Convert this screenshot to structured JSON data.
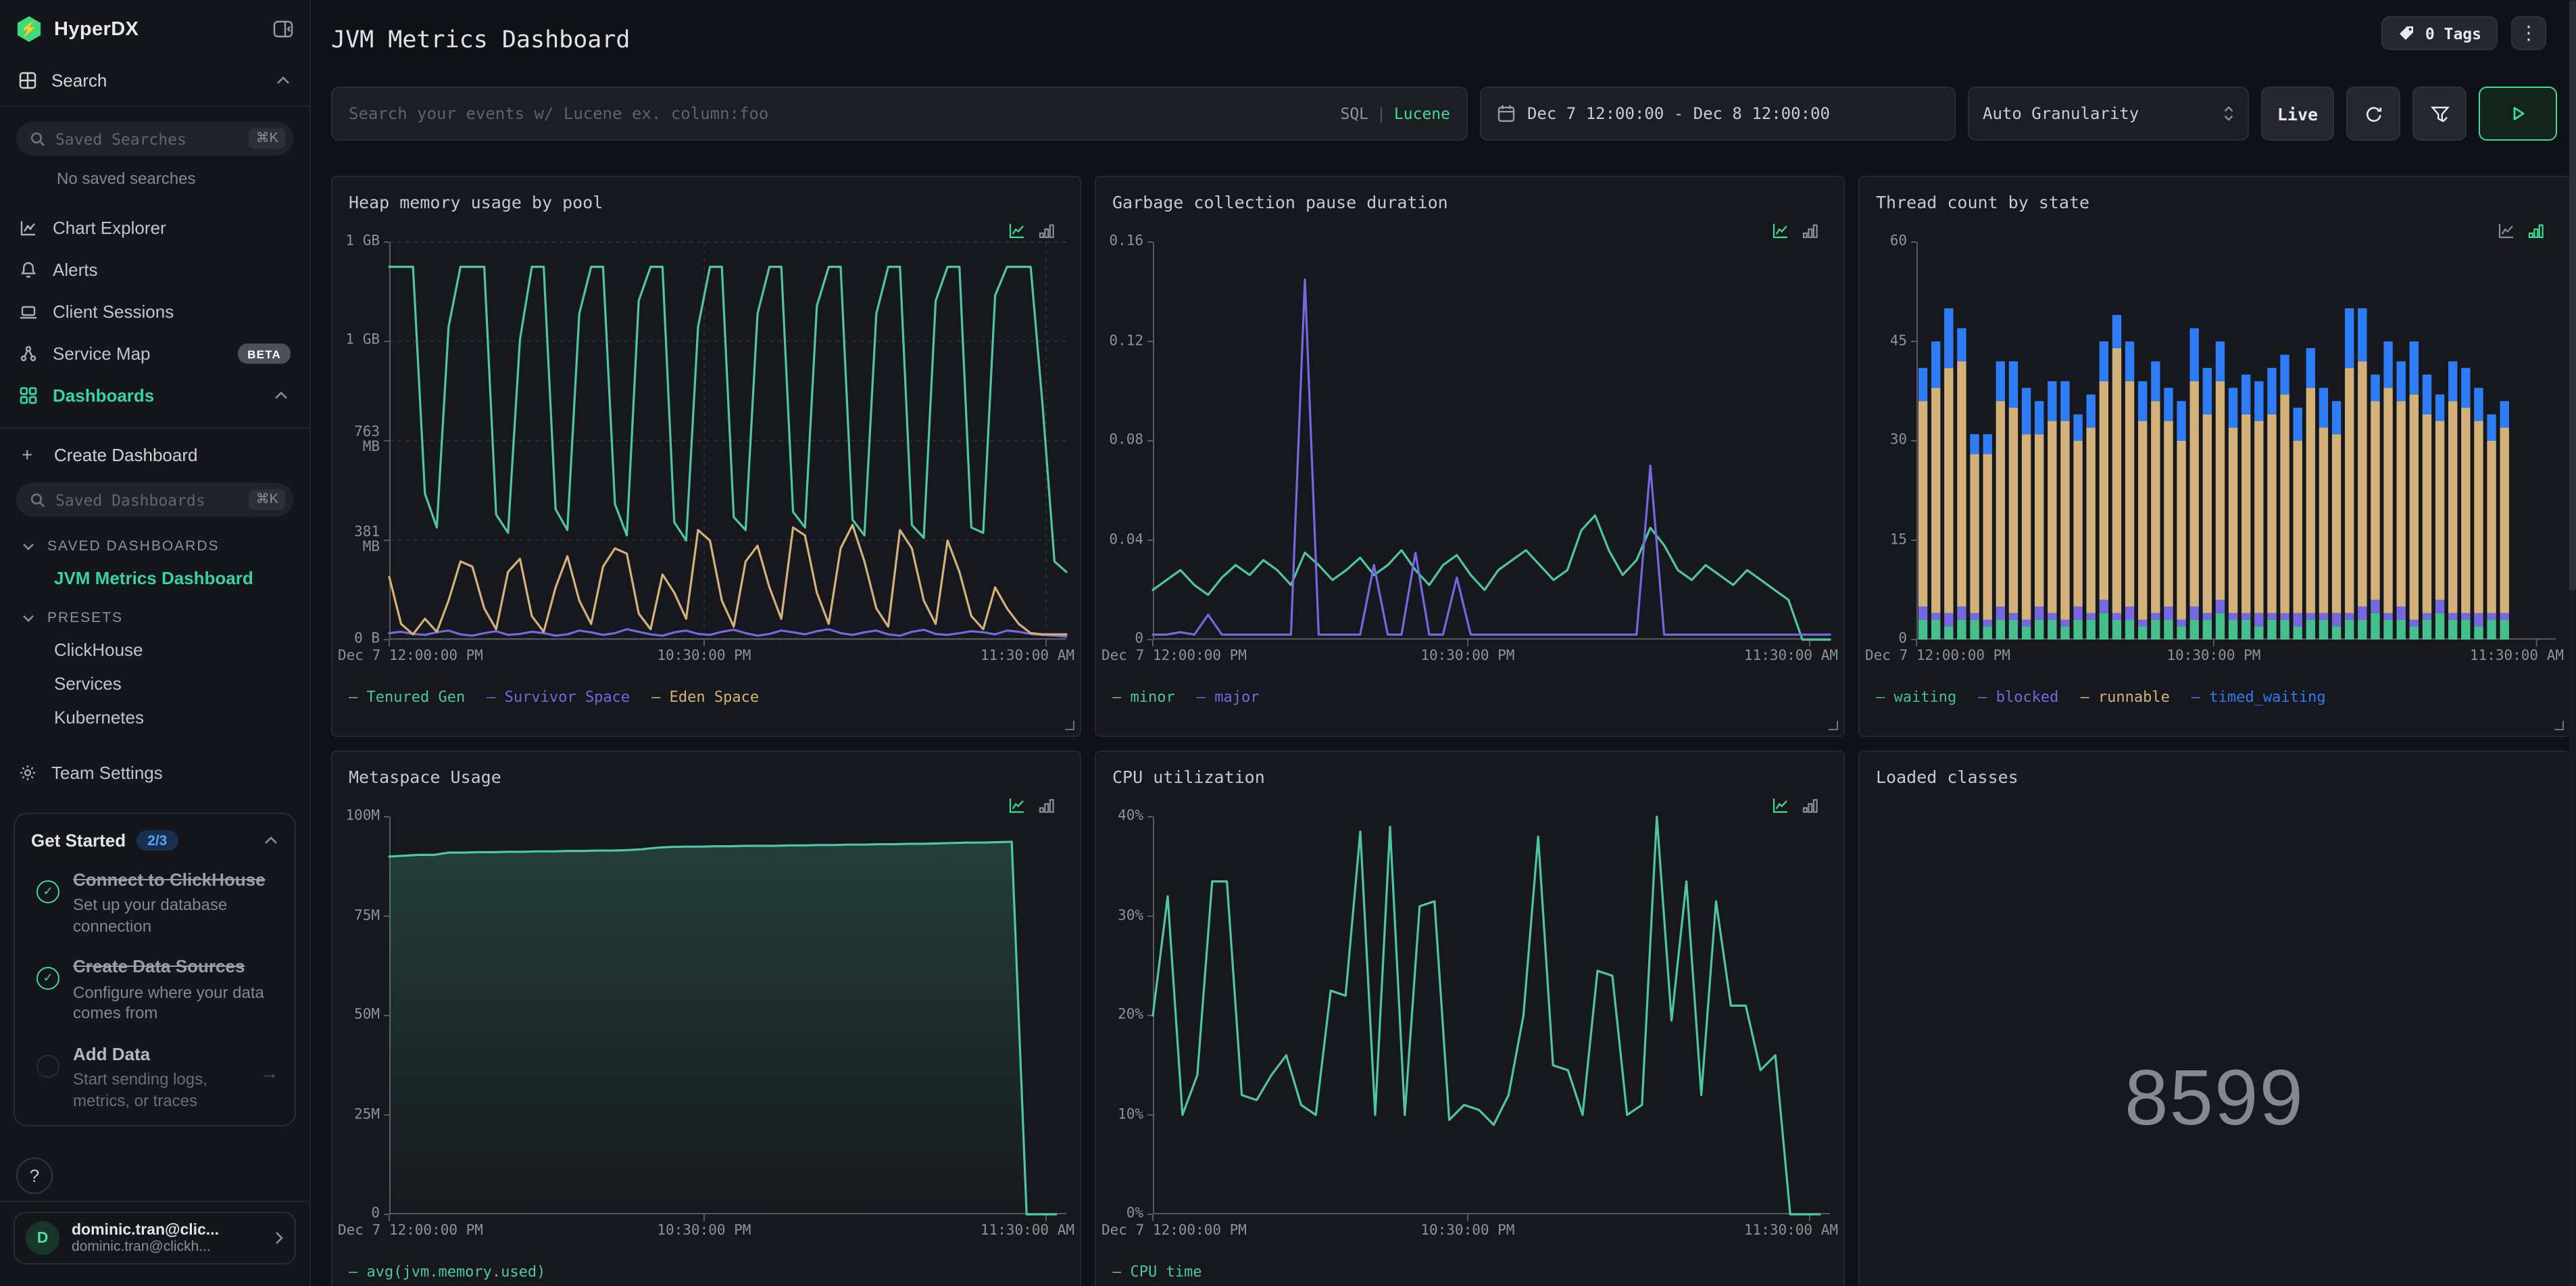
{
  "sidebar": {
    "brand": "HyperDX",
    "search_section_label": "Search",
    "saved_searches": {
      "placeholder": "Saved Searches",
      "shortcut": "⌘K"
    },
    "no_saved_searches": "No saved searches",
    "nav": [
      {
        "label": "Chart Explorer"
      },
      {
        "label": "Alerts"
      },
      {
        "label": "Client Sessions"
      },
      {
        "label": "Service Map",
        "badge": "BETA"
      },
      {
        "label": "Dashboards"
      }
    ],
    "create_dashboard_label": "Create Dashboard",
    "saved_dashboards": {
      "placeholder": "Saved Dashboards",
      "shortcut": "⌘K"
    },
    "groups": [
      {
        "title": "SAVED DASHBOARDS",
        "items": [
          {
            "label": "JVM Metrics Dashboard"
          }
        ]
      },
      {
        "title": "PRESETS",
        "items": [
          {
            "label": "ClickHouse"
          },
          {
            "label": "Services"
          },
          {
            "label": "Kubernetes"
          }
        ]
      }
    ],
    "team_settings_label": "Team Settings",
    "get_started": {
      "title": "Get Started",
      "progress": "2/3",
      "tasks": [
        {
          "title": "Connect to ClickHouse",
          "desc": "Set up your database connection",
          "done": true
        },
        {
          "title": "Create Data Sources",
          "desc": "Configure where your data comes from",
          "done": true
        },
        {
          "title": "Add Data",
          "desc": "Start sending logs, metrics, or traces",
          "done": false
        }
      ]
    },
    "help_label": "?",
    "user": {
      "initial": "D",
      "name": "dominic.tran@clic...",
      "email": "dominic.tran@clickh..."
    }
  },
  "header": {
    "title": "JVM Metrics Dashboard",
    "tags_label": "0 Tags",
    "kebab": "⋮"
  },
  "toolbar": {
    "search_placeholder": "Search your events w/ Lucene ex. column:foo",
    "lang_sql": "SQL",
    "lang_sep": "|",
    "lang_lucene": "Lucene",
    "time_range": "Dec 7 12:00:00 - Dec 8 12:00:00",
    "granularity": "Auto Granularity",
    "live_label": "Live"
  },
  "colors": {
    "green": "#4fc79e",
    "tan": "#d2b279",
    "purple": "#7568e0",
    "blue": "#2e7df7",
    "accent": "#3ddc97",
    "axis": "#565a63",
    "grid": "#2b2c33"
  },
  "panels": [
    {
      "title": "Heap memory usage by pool",
      "chart_data": {
        "type": "line",
        "grid": true,
        "xspan": 1.0,
        "ymin": 0,
        "ymax": 1525,
        "yticks": [
          {
            "v": 1525,
            "label": "1 GB"
          },
          {
            "v": 1144,
            "label": "1 GB"
          },
          {
            "v": 763,
            "label": "763 MB"
          },
          {
            "v": 381,
            "label": "381 MB"
          },
          {
            "v": 0,
            "label": "0 B"
          }
        ],
        "xticks": [
          {
            "f": 0,
            "label": "Dec 7 12:00:00 PM"
          },
          {
            "f": 0.465,
            "label": "10:30:00 PM"
          },
          {
            "f": 0.97,
            "label": "11:30:00 AM"
          }
        ],
        "series": [
          {
            "name": "Tenured Gen",
            "color": "#4fc79e",
            "values": [
              1430,
              1430,
              1430,
              560,
              430,
              1200,
              1430,
              1430,
              1430,
              480,
              410,
              1150,
              1430,
              1430,
              500,
              420,
              1250,
              1430,
              1430,
              520,
              400,
              1300,
              1430,
              1430,
              450,
              380,
              1200,
              1430,
              1430,
              470,
              420,
              1250,
              1430,
              1430,
              490,
              430,
              1280,
              1430,
              1430,
              460,
              400,
              1250,
              1430,
              1430,
              440,
              390,
              1300,
              1430,
              1430,
              430,
              410,
              1320,
              1430,
              1430,
              1430,
              900,
              300,
              260
            ]
          },
          {
            "name": "Survivor Space",
            "color": "#7568e0",
            "values": [
              25,
              30,
              22,
              18,
              28,
              35,
              20,
              15,
              25,
              32,
              18,
              22,
              30,
              25,
              15,
              20,
              35,
              28,
              18,
              25,
              40,
              30,
              20,
              15,
              28,
              35,
              22,
              18,
              30,
              38,
              25,
              15,
              22,
              35,
              28,
              20,
              32,
              40,
              25,
              18,
              28,
              35,
              20,
              15,
              30,
              38,
              22,
              18,
              25,
              32,
              28,
              20,
              35,
              30,
              22,
              18,
              15,
              12
            ]
          },
          {
            "name": "Eden Space",
            "color": "#d2b279",
            "values": [
              240,
              60,
              20,
              80,
              30,
              150,
              300,
              280,
              120,
              40,
              260,
              310,
              90,
              30,
              200,
              320,
              150,
              60,
              280,
              350,
              330,
              100,
              40,
              250,
              180,
              80,
              420,
              380,
              150,
              50,
              300,
              360,
              200,
              80,
              430,
              400,
              180,
              60,
              350,
              440,
              300,
              120,
              50,
              420,
              350,
              150,
              60,
              380,
              260,
              90,
              40,
              200,
              120,
              60,
              25,
              20,
              20,
              20
            ]
          }
        ]
      }
    },
    {
      "title": "Garbage collection pause duration",
      "chart_data": {
        "type": "line",
        "grid": false,
        "xspan": 1.0,
        "ymin": 0,
        "ymax": 0.16,
        "yticks": [
          {
            "v": 0.16,
            "label": "0.16"
          },
          {
            "v": 0.12,
            "label": "0.12"
          },
          {
            "v": 0.08,
            "label": "0.08"
          },
          {
            "v": 0.04,
            "label": "0.04"
          },
          {
            "v": 0,
            "label": "0"
          }
        ],
        "xticks": [
          {
            "f": 0,
            "label": "Dec 7 12:00:00 PM"
          },
          {
            "f": 0.465,
            "label": "10:30:00 PM"
          },
          {
            "f": 0.97,
            "label": "11:30:00 AM"
          }
        ],
        "series": [
          {
            "name": "minor",
            "color": "#4fc79e",
            "values": [
              0.02,
              0.024,
              0.028,
              0.022,
              0.018,
              0.025,
              0.03,
              0.026,
              0.032,
              0.028,
              0.022,
              0.035,
              0.03,
              0.024,
              0.028,
              0.033,
              0.026,
              0.03,
              0.036,
              0.028,
              0.022,
              0.03,
              0.034,
              0.026,
              0.02,
              0.028,
              0.032,
              0.036,
              0.03,
              0.024,
              0.028,
              0.044,
              0.05,
              0.036,
              0.026,
              0.032,
              0.045,
              0.038,
              0.028,
              0.024,
              0.03,
              0.026,
              0.022,
              0.028,
              0.024,
              0.02,
              0.016,
              0.0,
              0.0,
              0.0
            ]
          },
          {
            "name": "major",
            "color": "#7568e0",
            "values": [
              0.002,
              0.002,
              0.003,
              0.002,
              0.01,
              0.002,
              0.002,
              0.002,
              0.002,
              0.002,
              0.002,
              0.145,
              0.002,
              0.002,
              0.002,
              0.002,
              0.03,
              0.002,
              0.002,
              0.035,
              0.002,
              0.002,
              0.025,
              0.002,
              0.002,
              0.002,
              0.002,
              0.002,
              0.002,
              0.002,
              0.002,
              0.002,
              0.002,
              0.002,
              0.002,
              0.002,
              0.07,
              0.002,
              0.002,
              0.002,
              0.002,
              0.002,
              0.002,
              0.002,
              0.002,
              0.002,
              0.002,
              0.002,
              0.002,
              0.002
            ]
          }
        ]
      }
    },
    {
      "title": "Thread count by state",
      "chart_data": {
        "type": "bar",
        "grid": false,
        "xspan": 0.93,
        "ymin": 0,
        "ymax": 60,
        "yticks": [
          {
            "v": 60,
            "label": "60"
          },
          {
            "v": 45,
            "label": "45"
          },
          {
            "v": 30,
            "label": "30"
          },
          {
            "v": 15,
            "label": "15"
          },
          {
            "v": 0,
            "label": "0"
          }
        ],
        "xticks": [
          {
            "f": 0,
            "label": "Dec 7 12:00:00 PM"
          },
          {
            "f": 0.465,
            "label": "10:30:00 PM"
          },
          {
            "f": 0.97,
            "label": "11:30:00 AM"
          }
        ],
        "series": [
          {
            "name": "waiting",
            "color": "#45c08c",
            "values": [
              3,
              3,
              2,
              3,
              3,
              2,
              3,
              3,
              2,
              3,
              3,
              2,
              3,
              3,
              4,
              3,
              3,
              2,
              3,
              3,
              2,
              3,
              3,
              4,
              3,
              3,
              2,
              3,
              3,
              2,
              3,
              3,
              2,
              3,
              3,
              4,
              3,
              3,
              2,
              3,
              4,
              3,
              3,
              2,
              3,
              3
            ]
          },
          {
            "name": "blocked",
            "color": "#7568e0",
            "values": [
              2,
              1,
              2,
              2,
              1,
              1,
              2,
              1,
              1,
              2,
              1,
              1,
              2,
              1,
              2,
              1,
              2,
              1,
              1,
              2,
              1,
              2,
              1,
              2,
              1,
              1,
              2,
              1,
              1,
              2,
              1,
              1,
              2,
              1,
              2,
              2,
              1,
              2,
              1,
              1,
              2,
              1,
              1,
              2,
              1,
              1
            ]
          },
          {
            "name": "runnable",
            "color": "#d2b279",
            "values": [
              31,
              34,
              37,
              37,
              24,
              25,
              31,
              31,
              28,
              26,
              29,
              30,
              25,
              28,
              33,
              40,
              34,
              30,
              32,
              28,
              27,
              34,
              30,
              33,
              28,
              30,
              29,
              30,
              33,
              26,
              34,
              28,
              27,
              37,
              37,
              30,
              34,
              31,
              34,
              30,
              27,
              32,
              31,
              29,
              26,
              28
            ]
          },
          {
            "name": "timed_waiting",
            "color": "#2e7df7",
            "values": [
              5,
              7,
              9,
              5,
              3,
              3,
              6,
              7,
              7,
              5,
              6,
              6,
              4,
              5,
              6,
              5,
              6,
              6,
              6,
              5,
              6,
              8,
              7,
              6,
              6,
              6,
              6,
              7,
              6,
              5,
              6,
              6,
              5,
              9,
              8,
              4,
              7,
              6,
              8,
              6,
              4,
              6,
              6,
              5,
              4,
              4
            ]
          }
        ]
      }
    },
    {
      "title": "Metaspace Usage",
      "chart_data": {
        "type": "line",
        "grid": false,
        "xspan": 0.985,
        "ymin": 0,
        "ymax": 100,
        "yticks": [
          {
            "v": 100,
            "label": "100M"
          },
          {
            "v": 75,
            "label": "75M"
          },
          {
            "v": 50,
            "label": "50M"
          },
          {
            "v": 25,
            "label": "25M"
          },
          {
            "v": 0,
            "label": "0"
          }
        ],
        "xticks": [
          {
            "f": 0,
            "label": "Dec 7 12:00:00 PM"
          },
          {
            "f": 0.465,
            "label": "10:30:00 PM"
          },
          {
            "f": 0.97,
            "label": "11:30:00 AM"
          }
        ],
        "series": [
          {
            "name": "avg(jvm.memory.used)",
            "color": "#4fc79e",
            "fill": true,
            "values": [
              90,
              90.2,
              90.4,
              90.4,
              91,
              91,
              91.1,
              91.1,
              91.2,
              91.2,
              91.3,
              91.3,
              91.4,
              91.4,
              91.5,
              91.5,
              91.6,
              91.8,
              92.2,
              92.4,
              92.5,
              92.5,
              92.6,
              92.6,
              92.7,
              92.7,
              92.7,
              92.8,
              92.8,
              92.9,
              92.9,
              93,
              93,
              93.1,
              93.1,
              93.2,
              93.2,
              93.3,
              93.4,
              93.5,
              93.5,
              93.6,
              93.7,
              0,
              0,
              0
            ]
          }
        ]
      }
    },
    {
      "title": "CPU utilization",
      "chart_data": {
        "type": "line",
        "grid": false,
        "xspan": 0.985,
        "ymin": 0,
        "ymax": 40,
        "yticks": [
          {
            "v": 40,
            "label": "40%"
          },
          {
            "v": 30,
            "label": "30%"
          },
          {
            "v": 20,
            "label": "20%"
          },
          {
            "v": 10,
            "label": "10%"
          },
          {
            "v": 0,
            "label": "0%"
          }
        ],
        "xticks": [
          {
            "f": 0,
            "label": "Dec 7 12:00:00 PM"
          },
          {
            "f": 0.465,
            "label": "10:30:00 PM"
          },
          {
            "f": 0.97,
            "label": "11:30:00 AM"
          }
        ],
        "series": [
          {
            "name": "CPU time",
            "color": "#4fc79e",
            "values": [
              20,
              32,
              10,
              14,
              33.5,
              33.5,
              12,
              11.5,
              14,
              16,
              11,
              10,
              22.5,
              22,
              38.5,
              10,
              39,
              10,
              31,
              31.5,
              9.5,
              11,
              10.5,
              9,
              12,
              20,
              38,
              15,
              14.5,
              10,
              24.5,
              24,
              10,
              11,
              40,
              19.5,
              33.5,
              12,
              31.5,
              21,
              21,
              14.5,
              16,
              0,
              0,
              0
            ]
          }
        ]
      }
    },
    {
      "title": "Loaded classes",
      "chart_data": {
        "type": "number",
        "value": "8599"
      }
    }
  ]
}
